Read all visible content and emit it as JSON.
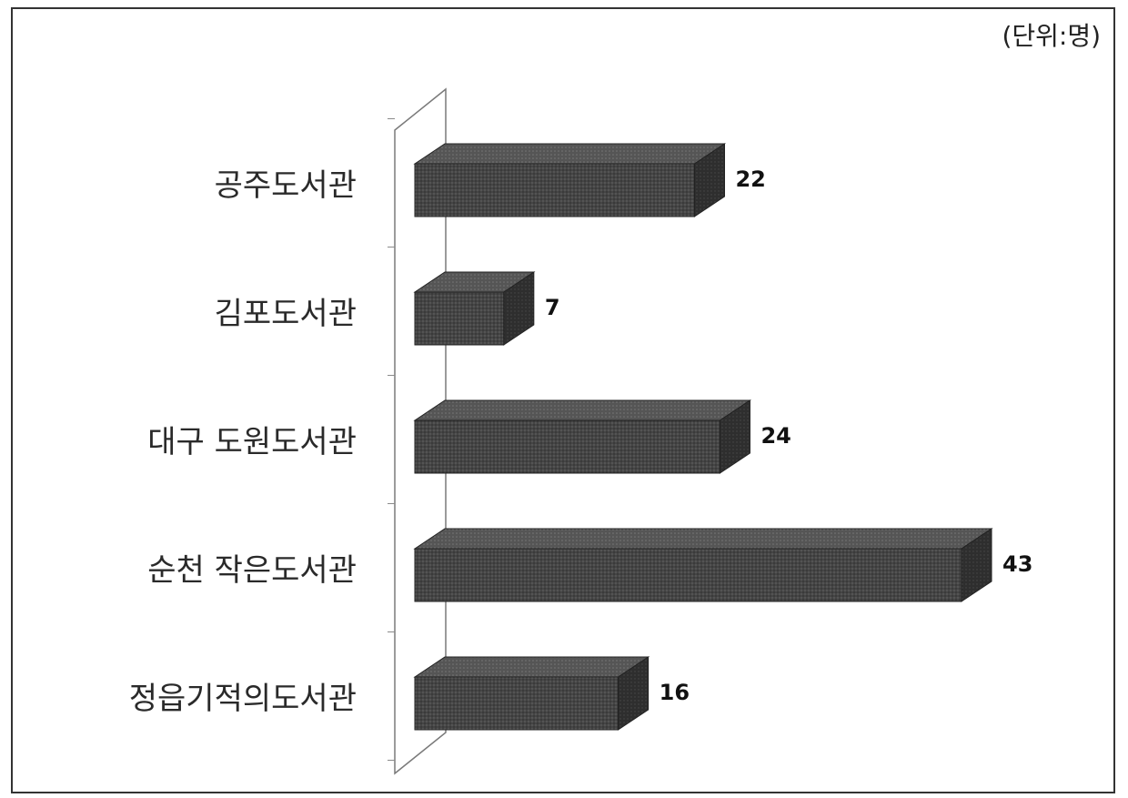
{
  "chart_data": {
    "type": "bar",
    "orientation": "horizontal",
    "style": "3d",
    "unit_note": "(단위:명)",
    "categories": [
      "공주도서관",
      "김포도서관",
      "대구 도원도서관",
      "순천 작은도서관",
      "정읍기적의도서관"
    ],
    "values": [
      22,
      7,
      24,
      43,
      16
    ],
    "value_labels": [
      "22",
      "7",
      "24",
      "43",
      "16"
    ],
    "xlim": [
      0,
      43
    ],
    "grid": false,
    "legend": "none",
    "bar_color": "#3c3c3c"
  }
}
